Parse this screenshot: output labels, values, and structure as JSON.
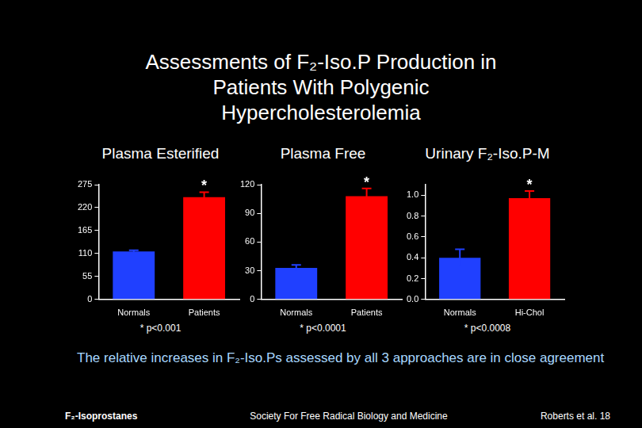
{
  "title": "Assessments of F₂-Iso.P Production in Patients With Polygenic Hypercholesterolemia",
  "caption": "The relative increases in F₂-Iso.Ps assessed by all 3 approaches are in close agreement",
  "footer": {
    "left": "F₂-Isoprostanes",
    "center": "Society For Free Radical Biology and Medicine",
    "right": "Roberts et al. 18"
  },
  "chart_data": [
    {
      "type": "bar",
      "title": "Plasma Esterified",
      "categories": [
        "Normals",
        "Patients"
      ],
      "values": [
        115,
        245
      ],
      "errors": [
        3,
        12
      ],
      "colors": [
        "#2040ff",
        "#ff0000"
      ],
      "ylim": [
        0,
        275
      ],
      "yticks": [
        0,
        55,
        110,
        165,
        220,
        275
      ],
      "grid": false,
      "annotation": {
        "text": "*",
        "category": "Patients"
      },
      "footnote": "* p<0.001"
    },
    {
      "type": "bar",
      "title": "Plasma Free",
      "categories": [
        "Normals",
        "Patients"
      ],
      "values": [
        33,
        108
      ],
      "errors": [
        3,
        8
      ],
      "colors": [
        "#2040ff",
        "#ff0000"
      ],
      "ylim": [
        0,
        120
      ],
      "yticks": [
        0,
        30,
        60,
        90,
        120
      ],
      "grid": false,
      "annotation": {
        "text": "*",
        "category": "Patients"
      },
      "footnote": "* p<0.0001"
    },
    {
      "type": "bar",
      "title": "Urinary F₂-Iso.P-M",
      "categories": [
        "Normals",
        "Hi-Chol"
      ],
      "values": [
        0.4,
        0.97
      ],
      "errors": [
        0.08,
        0.07
      ],
      "colors": [
        "#2040ff",
        "#ff0000"
      ],
      "ylim": [
        0,
        1.1
      ],
      "yticks": [
        {
          "value": 0,
          "label": "0.0"
        },
        {
          "value": 0.2,
          "label": "0.2"
        },
        {
          "value": 0.4,
          "label": "0.4"
        },
        {
          "value": 0.6,
          "label": "0.6"
        },
        {
          "value": 0.8,
          "label": "0.8"
        },
        {
          "value": 1.0,
          "label": "1.0"
        }
      ],
      "grid": false,
      "annotation": {
        "text": "*",
        "category": "Hi-Chol"
      },
      "footnote": "* p<0.0008"
    }
  ]
}
